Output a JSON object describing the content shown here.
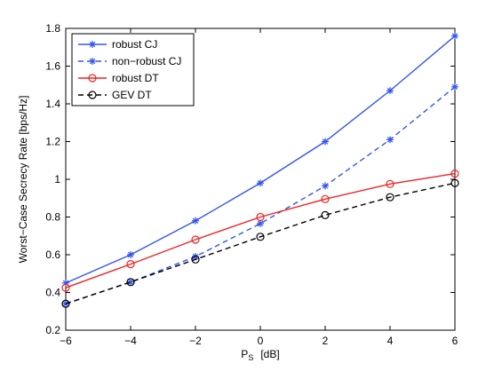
{
  "chart_data": {
    "type": "line",
    "x": [
      -6,
      -4,
      -2,
      0,
      2,
      4,
      6
    ],
    "xlim": [
      -6,
      6
    ],
    "ylim": [
      0.2,
      1.8
    ],
    "xticks": [
      -6,
      -4,
      -2,
      0,
      2,
      4,
      6
    ],
    "yticks": [
      0.2,
      0.4,
      0.6,
      0.8,
      1.0,
      1.2,
      1.4,
      1.6,
      1.8
    ],
    "xtick_labels": [
      "−6",
      "−4",
      "−2",
      "0",
      "2",
      "4",
      "6"
    ],
    "ytick_labels": [
      "0.2",
      "0.4",
      "0.6",
      "0.8",
      "1",
      "1.2",
      "1.4",
      "1.6",
      "1.8"
    ],
    "xlabel": "P",
    "xlabel_sub": "S",
    "xlabel_unit": "[dB]",
    "ylabel": "Worst−Case Secrecy Rate [bps/Hz]",
    "grid": false,
    "legend_position": "top-left",
    "series": [
      {
        "name": "robust CJ",
        "color": "#3355ee",
        "dash": "solid",
        "marker": "asterisk",
        "values": [
          0.45,
          0.6,
          0.78,
          0.98,
          1.2,
          1.47,
          1.76
        ]
      },
      {
        "name": "non−robust CJ",
        "color": "#3355ee",
        "dash": "dashed",
        "marker": "asterisk",
        "values": [
          0.34,
          0.455,
          0.59,
          0.765,
          0.965,
          1.21,
          1.49
        ]
      },
      {
        "name": "robust DT",
        "color": "#ee2222",
        "dash": "solid",
        "marker": "circle",
        "values": [
          0.425,
          0.55,
          0.68,
          0.8,
          0.895,
          0.975,
          1.03
        ]
      },
      {
        "name": "GEV DT",
        "color": "#000000",
        "dash": "dashed",
        "marker": "circle",
        "values": [
          0.34,
          0.455,
          0.575,
          0.695,
          0.81,
          0.905,
          0.98
        ]
      }
    ]
  }
}
